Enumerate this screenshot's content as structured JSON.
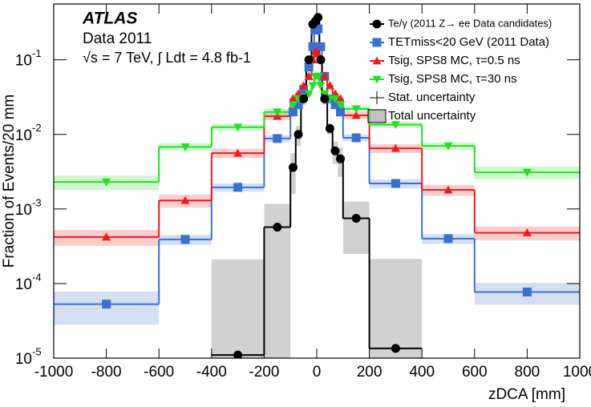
{
  "chart_data": {
    "type": "histogram",
    "x_label": "zDCA [mm]",
    "y_label": "Fraction of Events/20 mm",
    "annotations": [
      "ATLAS",
      "Data 2011",
      "√s = 7 TeV, ∫ Ldt = 4.8 fb-1"
    ],
    "log_y": true,
    "bins": [
      -1000,
      -600,
      -400,
      -200,
      -100,
      -80,
      -60,
      -40,
      -20,
      -10,
      0,
      10,
      20,
      40,
      60,
      80,
      100,
      200,
      400,
      600,
      1000
    ],
    "series": [
      {
        "name": "Te/γ (2011 Z→ ee Data candidates)",
        "color": "#000000",
        "marker": "circle",
        "band_color": "#999999",
        "values": [
          null,
          null,
          1.1e-05,
          0.00057,
          0.0036,
          0.01,
          0.03,
          0.1,
          0.3,
          0.33,
          0.37,
          0.1,
          0.03,
          0.012,
          0.006,
          0.0047,
          0.00075,
          1.35e-05,
          null,
          null
        ],
        "errors": [
          null,
          null,
          0.0002,
          0.0006,
          0.002,
          0.003,
          0.005,
          0.01,
          0.03,
          0.03,
          0.03,
          0.01,
          0.005,
          0.002,
          0.002,
          0.002,
          0.0005,
          0.0002,
          null,
          null
        ]
      },
      {
        "name": "TETmiss<20 GeV (2011 Data)",
        "color": "#3a6fcb",
        "marker": "square",
        "band_color": "#3a6fcb",
        "values": [
          5.3e-05,
          0.00039,
          0.00195,
          0.0088,
          0.02,
          0.025,
          0.04,
          0.08,
          0.15,
          0.25,
          0.26,
          0.15,
          0.06,
          0.03,
          0.025,
          0.02,
          0.009,
          0.0022,
          0.0004,
          7.7e-05
        ],
        "errors": [
          2.5e-05,
          6e-05,
          0.00025,
          0.001,
          0.002,
          0.0025,
          0.004,
          0.008,
          0.015,
          0.025,
          0.026,
          0.015,
          0.006,
          0.003,
          0.0025,
          0.002,
          0.001,
          0.0003,
          6e-05,
          2.5e-05
        ]
      },
      {
        "name": "Tsig, SPS8 MC, τ=0.5 ns",
        "color": "#ee1c1c",
        "marker": "triangle-up",
        "band_color": "#ee1c1c",
        "values": [
          0.00042,
          0.0013,
          0.0056,
          0.0175,
          0.03,
          0.035,
          0.045,
          0.06,
          0.1,
          0.13,
          0.12,
          0.1,
          0.06,
          0.045,
          0.035,
          0.03,
          0.018,
          0.0065,
          0.0018,
          0.00048
        ],
        "errors": [
          0.0001,
          0.00025,
          0.0008,
          0.002,
          0.004,
          0.004,
          0.005,
          0.007,
          0.012,
          0.015,
          0.014,
          0.012,
          0.007,
          0.005,
          0.004,
          0.004,
          0.002,
          0.0009,
          0.0003,
          0.0001
        ]
      },
      {
        "name": "Tsig, SPS8 MC, τ=30 ns",
        "color": "#22e022",
        "marker": "triangle-down",
        "band_color": "#22e022",
        "values": [
          0.0023,
          0.0068,
          0.0125,
          0.02,
          0.025,
          0.03,
          0.03,
          0.035,
          0.045,
          0.06,
          0.06,
          0.045,
          0.035,
          0.03,
          0.03,
          0.025,
          0.022,
          0.0135,
          0.007,
          0.0031
        ],
        "errors": [
          0.0005,
          0.0008,
          0.0012,
          0.002,
          0.003,
          0.003,
          0.003,
          0.004,
          0.005,
          0.007,
          0.007,
          0.005,
          0.004,
          0.003,
          0.003,
          0.003,
          0.002,
          0.0013,
          0.0008,
          0.0006
        ]
      }
    ],
    "legend_extra": [
      "Stat. uncertainty",
      "Total uncertainty"
    ],
    "legend_position": "upper right",
    "xlim": [
      -1000,
      1000
    ],
    "xticks": [
      -1000,
      -800,
      -600,
      -400,
      -200,
      0,
      200,
      400,
      600,
      800,
      1000
    ],
    "ylim": [
      1e-05,
      0.56
    ],
    "yticks": [
      {
        "value": 1e-05,
        "label": "10",
        "exponent": "-5"
      },
      {
        "value": 0.0001,
        "label": "10",
        "exponent": "-4"
      },
      {
        "value": 0.001,
        "label": "10",
        "exponent": "-3"
      },
      {
        "value": 0.01,
        "label": "10",
        "exponent": "-2"
      },
      {
        "value": 0.1,
        "label": "10",
        "exponent": "-1"
      }
    ]
  }
}
